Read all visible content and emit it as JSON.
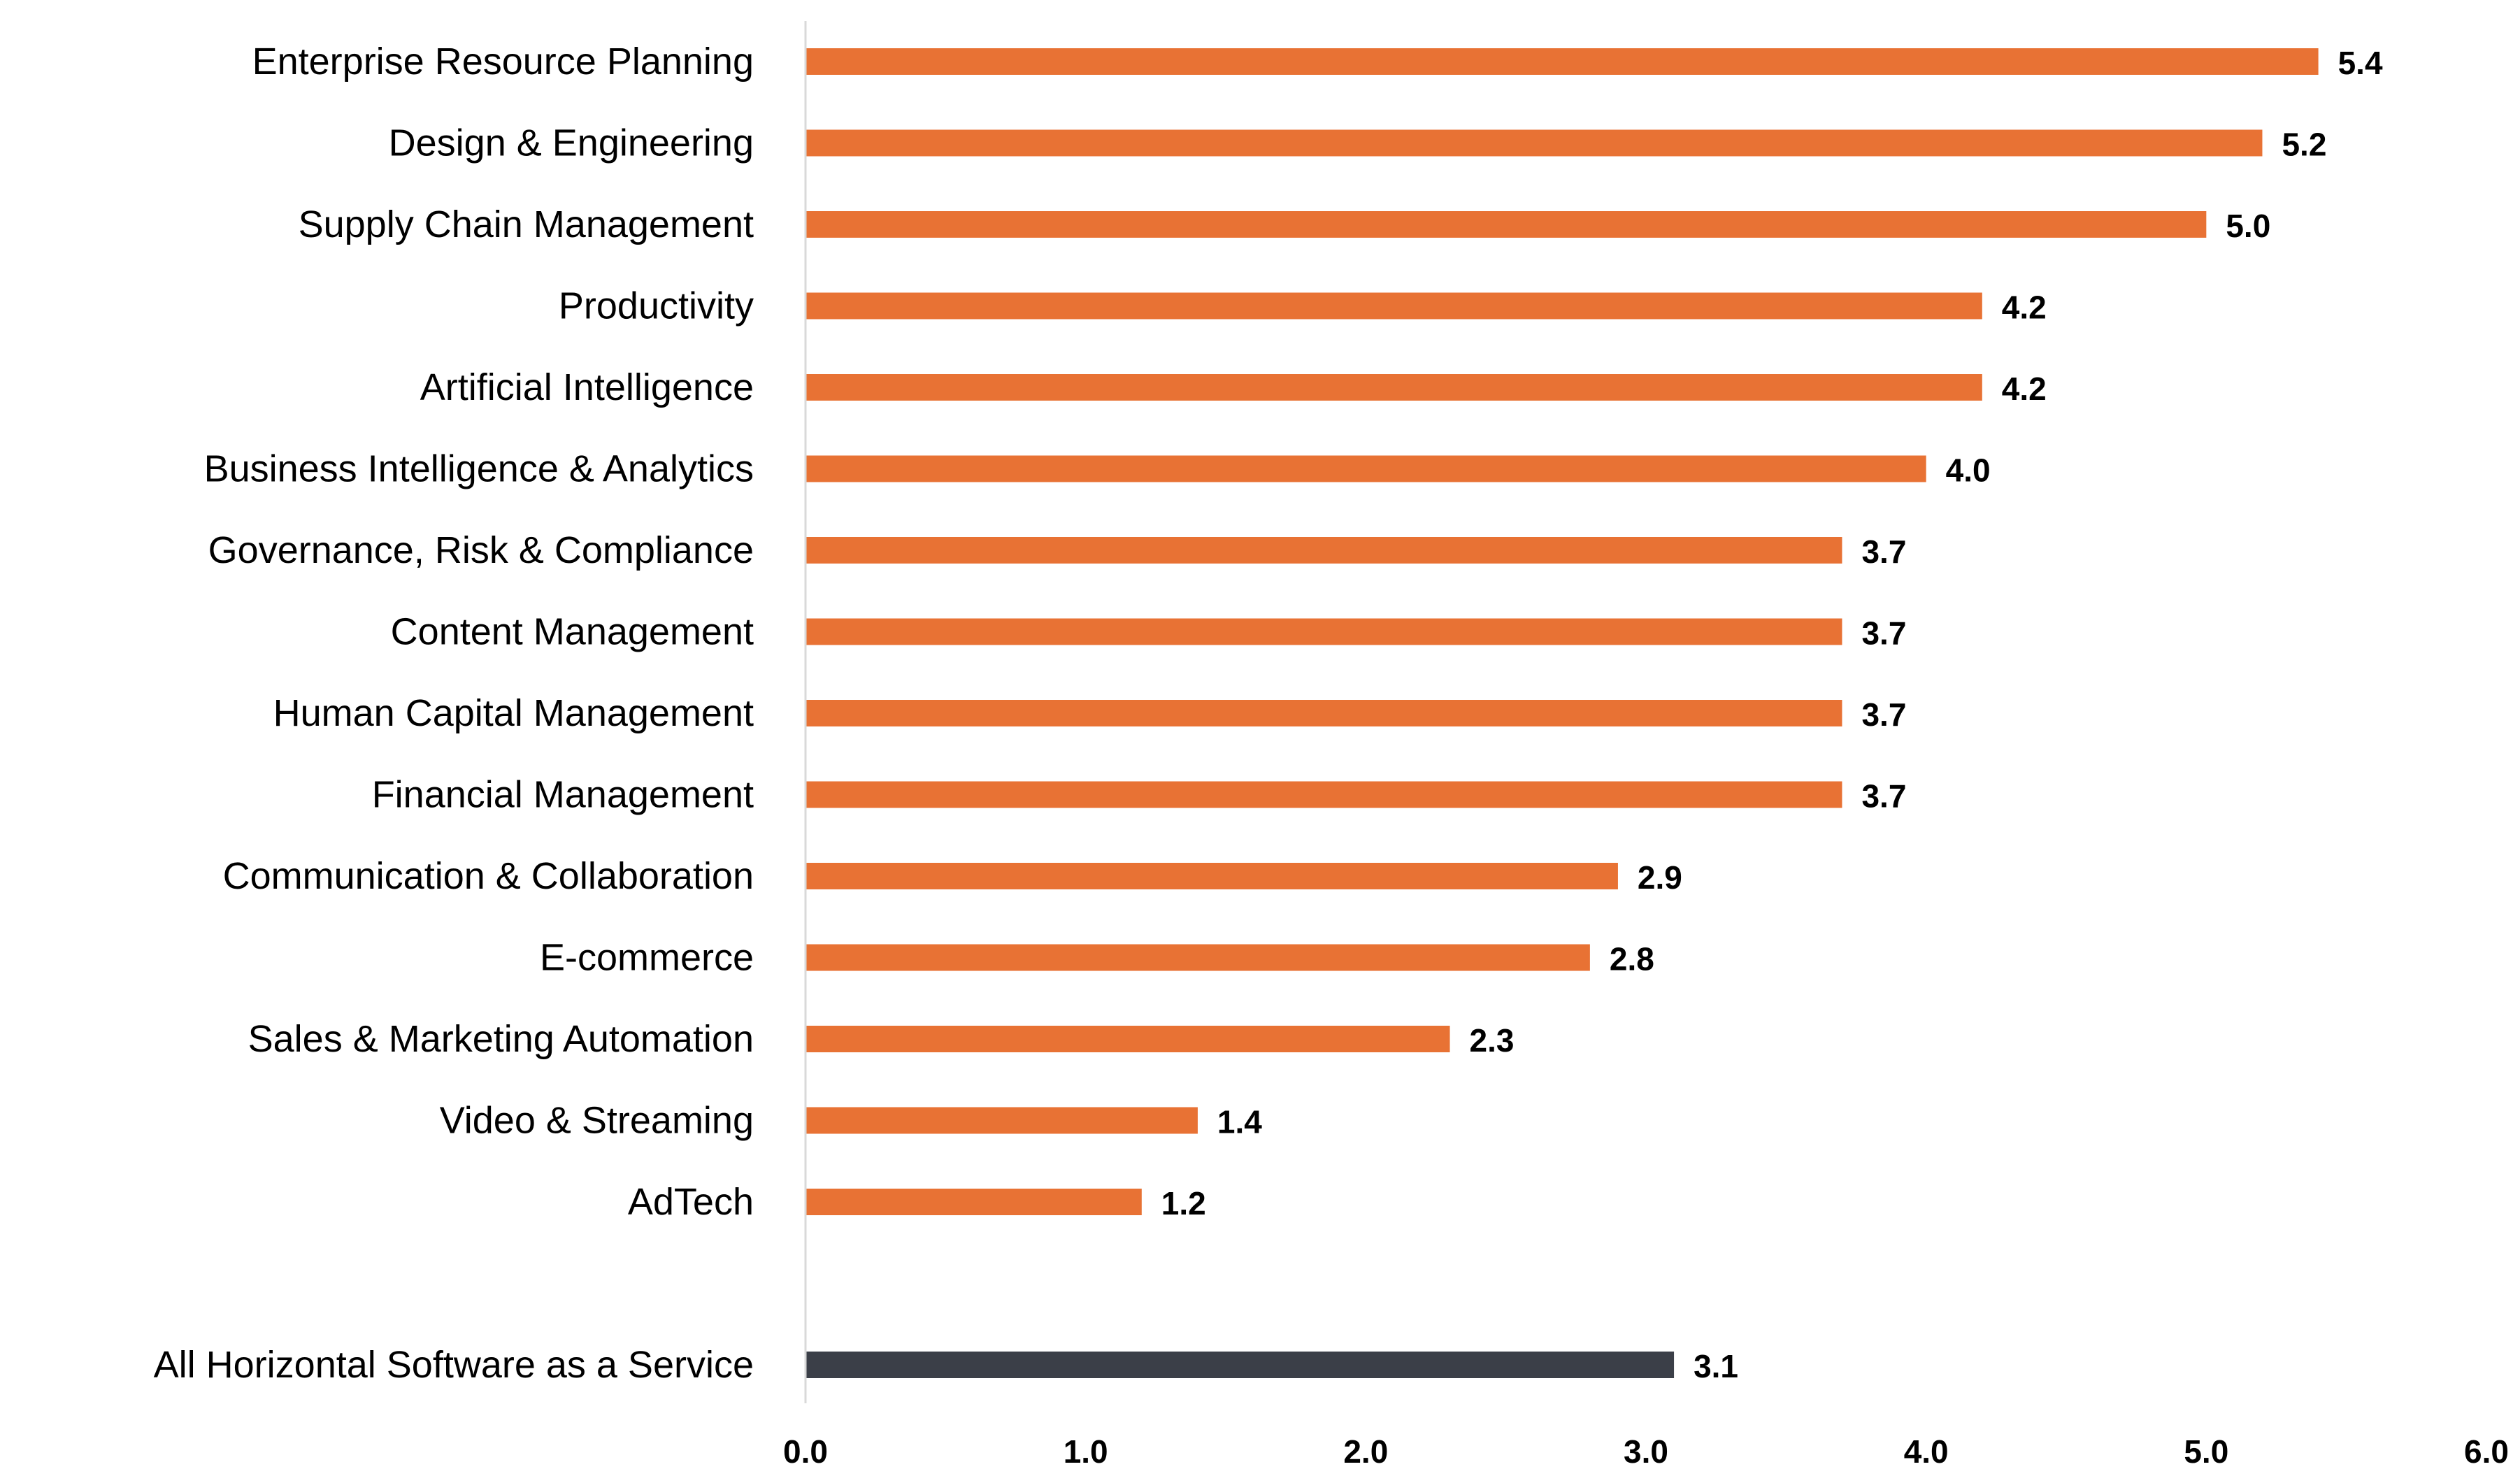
{
  "chart_data": {
    "type": "bar",
    "orientation": "horizontal",
    "title": "",
    "xlabel": "",
    "ylabel": "",
    "xlim": [
      0,
      6
    ],
    "x_ticks": [
      "0.0",
      "1.0",
      "2.0",
      "3.0",
      "4.0",
      "5.0",
      "6.0"
    ],
    "grid": false,
    "legend": "none",
    "categories": [
      "Enterprise Resource Planning",
      "Design & Engineering",
      "Supply Chain Management",
      "Productivity",
      "Artificial Intelligence",
      "Business Intelligence & Analytics",
      "Governance, Risk & Compliance",
      "Content Management",
      "Human Capital Management",
      "Financial Management",
      "Communication & Collaboration",
      "E-commerce",
      "Sales & Marketing Automation",
      "Video & Streaming",
      "AdTech",
      "All Horizontal Software as a Service"
    ],
    "values": [
      5.4,
      5.2,
      5.0,
      4.2,
      4.2,
      4.0,
      3.7,
      3.7,
      3.7,
      3.7,
      2.9,
      2.8,
      2.3,
      1.4,
      1.2,
      3.1
    ],
    "value_labels": [
      "5.4",
      "5.2",
      "5.0",
      "4.2",
      "4.2",
      "4.0",
      "3.7",
      "3.7",
      "3.7",
      "3.7",
      "2.9",
      "2.8",
      "2.3",
      "1.4",
      "1.2",
      "3.1"
    ],
    "highlight": [
      false,
      false,
      false,
      false,
      false,
      false,
      false,
      false,
      false,
      false,
      false,
      false,
      false,
      false,
      false,
      true
    ],
    "gap_before": [
      false,
      false,
      false,
      false,
      false,
      false,
      false,
      false,
      false,
      false,
      false,
      false,
      false,
      false,
      false,
      true
    ]
  },
  "colors": {
    "bar": "#E87234",
    "highlight_bar": "#3B3F48",
    "axis": "#D9D9D9",
    "text": "#000000"
  }
}
